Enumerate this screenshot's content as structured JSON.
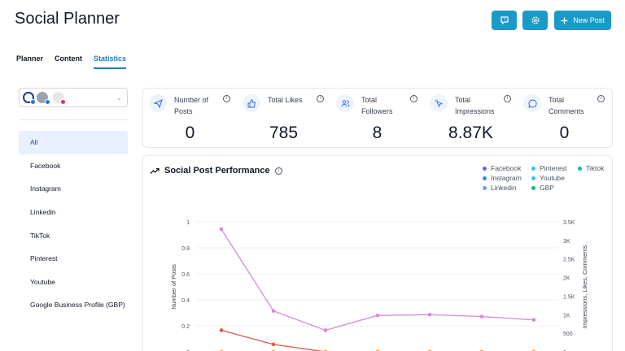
{
  "header": {
    "title": "Social Planner",
    "new_post_label": "New Post",
    "accent_color": "#1b9ac7"
  },
  "tabs": [
    {
      "label": "Planner",
      "active": false
    },
    {
      "label": "Content",
      "active": false
    },
    {
      "label": "Statistics",
      "active": true
    }
  ],
  "sidebar": {
    "account_select": {
      "icons": [
        "account-avatar-icon",
        "facebook-badge-icon",
        "instagram-badge-icon"
      ]
    },
    "items": [
      {
        "label": "All",
        "active": true
      },
      {
        "label": "Facebook",
        "active": false
      },
      {
        "label": "Instagram",
        "active": false
      },
      {
        "label": "Linkedin",
        "active": false
      },
      {
        "label": "TikTok",
        "active": false
      },
      {
        "label": "Pinterest",
        "active": false
      },
      {
        "label": "Youtube",
        "active": false
      },
      {
        "label": "Google Business Profile (GBP)",
        "active": false
      }
    ]
  },
  "stats": [
    {
      "label": "Number of Posts",
      "value": "0",
      "icon": "send-icon"
    },
    {
      "label": "Total Likes",
      "value": "785",
      "icon": "thumbs-up-icon"
    },
    {
      "label": "Total Followers",
      "value": "8",
      "icon": "users-icon"
    },
    {
      "label": "Total Impressions",
      "value": "8.87K",
      "icon": "cursor-click-icon"
    },
    {
      "label": "Total Comments",
      "value": "0",
      "icon": "message-icon"
    }
  ],
  "performance": {
    "title": "Social Post Performance",
    "legend": [
      {
        "name": "Facebook",
        "color": "#6366f1"
      },
      {
        "name": "Pinterest",
        "color": "#38bdf8"
      },
      {
        "name": "Tiktok",
        "color": "#14b8a6"
      },
      {
        "name": "Instagram",
        "color": "#3b82f6"
      },
      {
        "name": "Youtube",
        "color": "#38bdf8"
      },
      {
        "name": "Linkedin",
        "color": "#60a5fa"
      },
      {
        "name": "GBP",
        "color": "#10b981"
      }
    ]
  },
  "chart_data": {
    "type": "line",
    "ylabel": "Number of Posts",
    "y2label": "Impressions, Likes, Comments",
    "ylim": [
      0,
      1
    ],
    "y2lim": [
      0,
      3500
    ],
    "yticks": [
      "1",
      "0.8",
      "0.6",
      "0.4",
      "0.2",
      "0"
    ],
    "y2ticks": [
      "3.5K",
      "3K",
      "2.5K",
      "2K",
      "1.5K",
      "1K",
      "500",
      "0"
    ],
    "grid": true,
    "series": [
      {
        "color": "#d88ad8",
        "axis": "right",
        "values": [
          3300,
          1100,
          580,
          980,
          1000,
          950,
          860
        ]
      },
      {
        "color": "#e05a47",
        "axis": "right",
        "values": [
          580,
          200,
          0,
          0,
          0,
          0,
          0
        ]
      },
      {
        "color": "#f5a623",
        "axis": "right",
        "values": [
          0,
          0,
          0,
          0,
          0,
          0,
          0
        ]
      }
    ]
  }
}
